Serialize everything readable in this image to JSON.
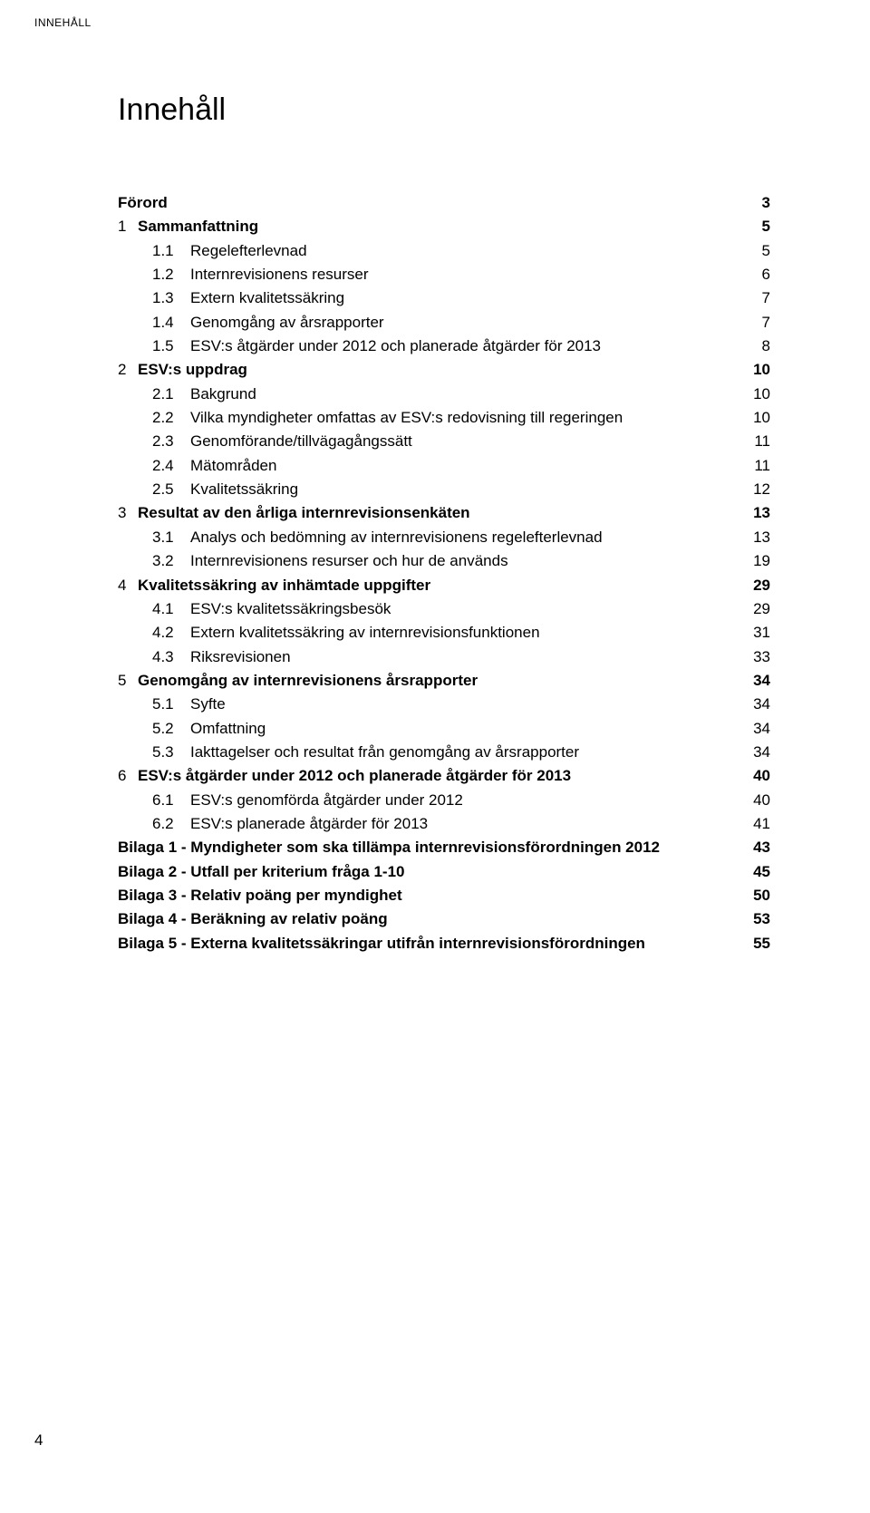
{
  "running_head": "INNEHÅLL",
  "title": "Innehåll",
  "footer_page_number": "4",
  "toc": [
    {
      "level": 0,
      "num": "",
      "text": "Förord",
      "page": "3"
    },
    {
      "level": 0,
      "num": "1",
      "text": "Sammanfattning",
      "page": "5"
    },
    {
      "level": 1,
      "num": "1.1",
      "text": "Regelefterlevnad",
      "page": "5"
    },
    {
      "level": 1,
      "num": "1.2",
      "text": "Internrevisionens resurser",
      "page": "6"
    },
    {
      "level": 1,
      "num": "1.3",
      "text": "Extern kvalitetssäkring",
      "page": "7"
    },
    {
      "level": 1,
      "num": "1.4",
      "text": "Genomgång av årsrapporter",
      "page": "7"
    },
    {
      "level": 1,
      "num": "1.5",
      "text": "ESV:s åtgärder under 2012 och planerade åtgärder för 2013",
      "page": "8"
    },
    {
      "level": 0,
      "num": "2",
      "text": "ESV:s uppdrag",
      "page": "10"
    },
    {
      "level": 1,
      "num": "2.1",
      "text": "Bakgrund",
      "page": "10"
    },
    {
      "level": 1,
      "num": "2.2",
      "text": "Vilka myndigheter omfattas av ESV:s redovisning till regeringen",
      "page": "10"
    },
    {
      "level": 1,
      "num": "2.3",
      "text": "Genomförande/tillvägagångssätt",
      "page": "11"
    },
    {
      "level": 1,
      "num": "2.4",
      "text": "Mätområden",
      "page": "11"
    },
    {
      "level": 1,
      "num": "2.5",
      "text": "Kvalitetssäkring",
      "page": "12"
    },
    {
      "level": 0,
      "num": "3",
      "text": "Resultat av den årliga internrevisionsenkäten",
      "page": "13"
    },
    {
      "level": 1,
      "num": "3.1",
      "text": "Analys och bedömning av internrevisionens regelefterlevnad",
      "page": "13"
    },
    {
      "level": 1,
      "num": "3.2",
      "text": "Internrevisionens resurser och hur de används",
      "page": "19"
    },
    {
      "level": 0,
      "num": "4",
      "text": "Kvalitetssäkring av inhämtade uppgifter",
      "page": "29"
    },
    {
      "level": 1,
      "num": "4.1",
      "text": "ESV:s kvalitetssäkringsbesök",
      "page": "29"
    },
    {
      "level": 1,
      "num": "4.2",
      "text": "Extern kvalitetssäkring av internrevisionsfunktionen",
      "page": "31"
    },
    {
      "level": 1,
      "num": "4.3",
      "text": "Riksrevisionen",
      "page": "33"
    },
    {
      "level": 0,
      "num": "5",
      "text": "Genomgång av internrevisionens årsrapporter",
      "page": "34"
    },
    {
      "level": 1,
      "num": "5.1",
      "text": "Syfte",
      "page": "34"
    },
    {
      "level": 1,
      "num": "5.2",
      "text": "Omfattning",
      "page": "34"
    },
    {
      "level": 1,
      "num": "5.3",
      "text": "Iakttagelser och resultat från genomgång av årsrapporter",
      "page": "34"
    },
    {
      "level": 0,
      "num": "6",
      "text": "ESV:s åtgärder under 2012 och planerade åtgärder för 2013",
      "page": "40"
    },
    {
      "level": 1,
      "num": "6.1",
      "text": "ESV:s genomförda åtgärder under 2012",
      "page": "40"
    },
    {
      "level": 1,
      "num": "6.2",
      "text": "ESV:s planerade åtgärder för 2013",
      "page": "41"
    },
    {
      "level": 0,
      "num": "",
      "text": "Bilaga 1 - Myndigheter som ska tillämpa internrevisionsförordningen 2012",
      "page": "43"
    },
    {
      "level": 0,
      "num": "",
      "text": "Bilaga 2 - Utfall per kriterium fråga 1-10",
      "page": "45"
    },
    {
      "level": 0,
      "num": "",
      "text": "Bilaga 3 - Relativ poäng per myndighet",
      "page": "50"
    },
    {
      "level": 0,
      "num": "",
      "text": "Bilaga 4 - Beräkning av relativ poäng",
      "page": "53"
    },
    {
      "level": 0,
      "num": "",
      "text": "Bilaga 5 - Externa kvalitetssäkringar utifrån internrevisionsförordningen",
      "page": "55"
    }
  ]
}
